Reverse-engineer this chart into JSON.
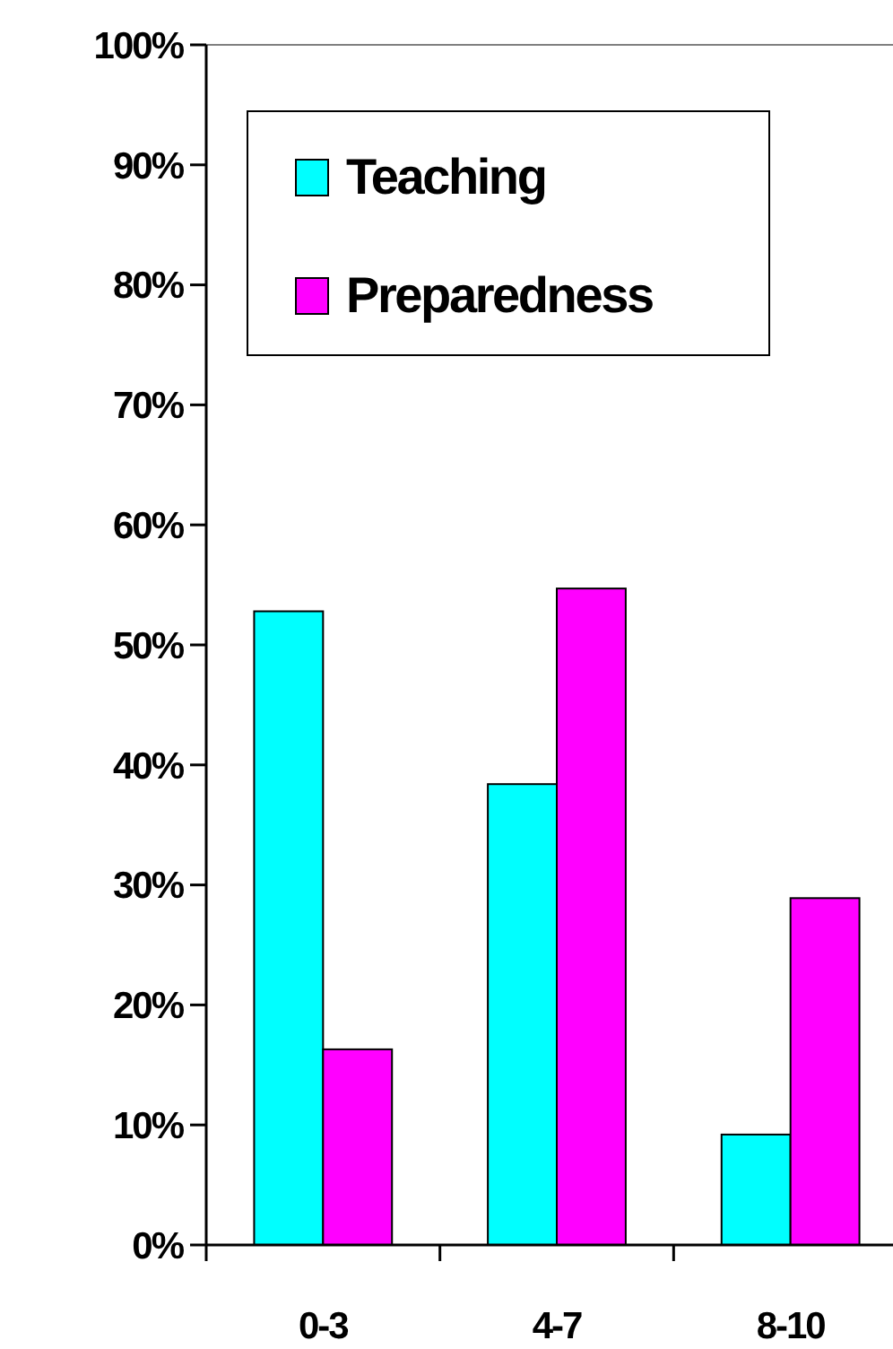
{
  "chart_data": {
    "type": "bar",
    "categories": [
      "0-3",
      "4-7",
      "8-10"
    ],
    "series": [
      {
        "name": "Teaching",
        "color": "#00ffff",
        "values": [
          52.8,
          38.4,
          9.2
        ]
      },
      {
        "name": "Preparedness",
        "color": "#ff00ff",
        "values": [
          16.3,
          54.7,
          28.9
        ]
      }
    ],
    "ylim": [
      0,
      100
    ],
    "yticks": [
      {
        "value": 0,
        "label": "0%"
      },
      {
        "value": 10,
        "label": "10%"
      },
      {
        "value": 20,
        "label": "20%"
      },
      {
        "value": 30,
        "label": "30%"
      },
      {
        "value": 40,
        "label": "40%"
      },
      {
        "value": 50,
        "label": "50%"
      },
      {
        "value": 60,
        "label": "60%"
      },
      {
        "value": 70,
        "label": "70%"
      },
      {
        "value": 80,
        "label": "80%"
      },
      {
        "value": 90,
        "label": "90%"
      },
      {
        "value": 100,
        "label": "100%"
      }
    ],
    "grid": false,
    "legend": "top left"
  }
}
